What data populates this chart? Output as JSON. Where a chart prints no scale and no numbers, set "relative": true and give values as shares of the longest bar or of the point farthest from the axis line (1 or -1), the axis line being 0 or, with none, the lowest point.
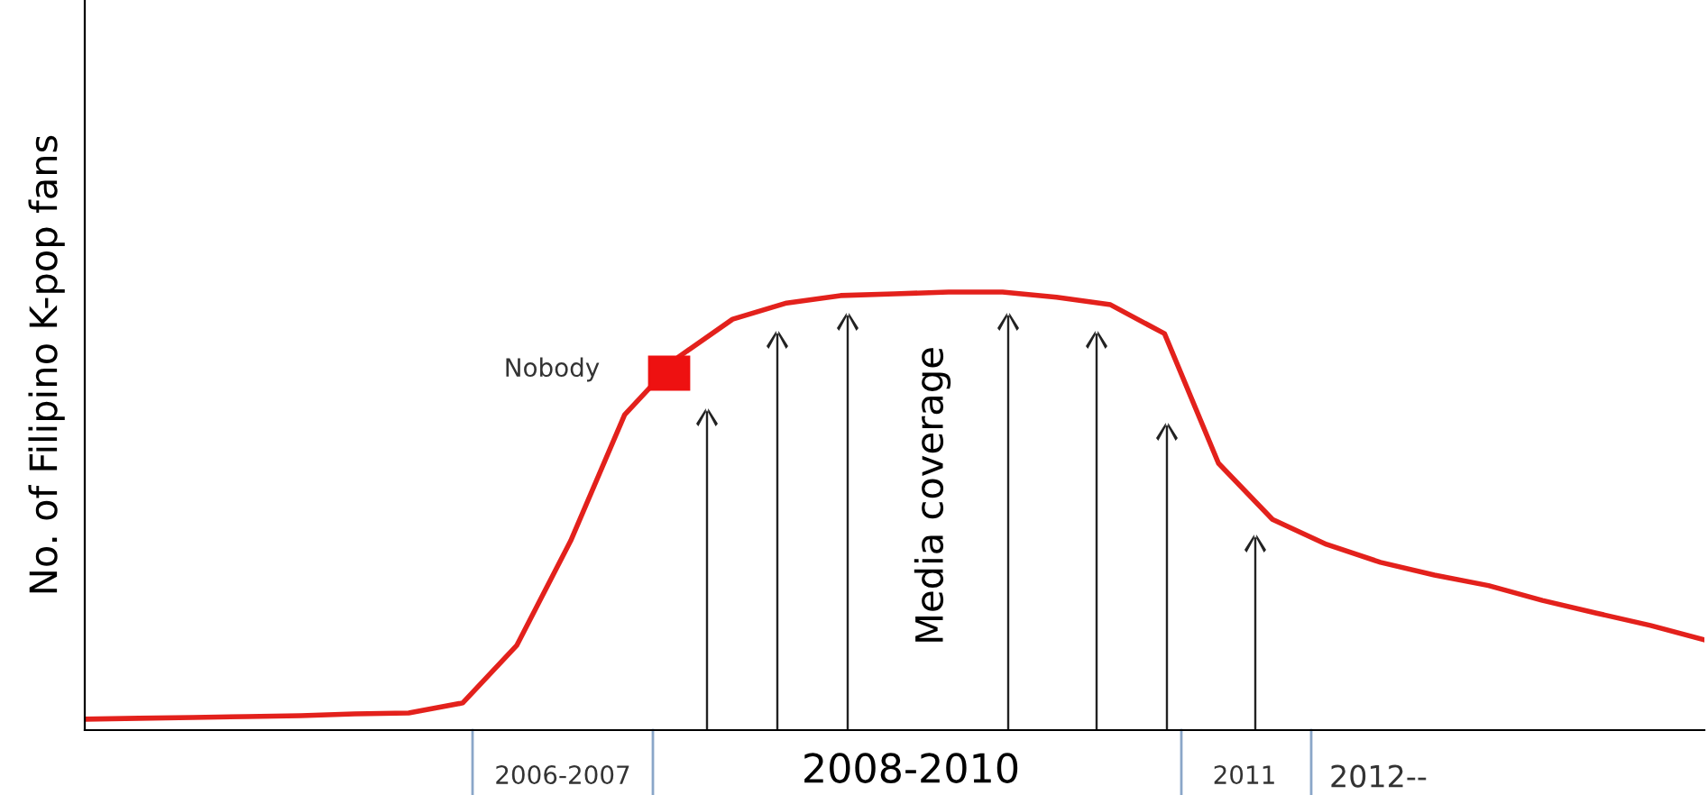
{
  "chart_data": {
    "type": "line",
    "relative": true,
    "ylabel": "No. of Filipino K-pop fans",
    "categories": [
      null,
      null,
      null,
      null,
      null,
      null,
      null,
      null,
      null,
      null,
      null,
      null,
      null,
      null,
      null,
      null,
      null,
      null,
      null,
      null,
      null,
      null,
      null,
      null,
      null,
      null,
      null,
      null,
      null,
      null,
      null
    ],
    "series": [
      {
        "color": "#e3211c",
        "values": [
          0.025,
          0.027,
          0.029,
          0.031,
          0.033,
          0.037,
          0.039,
          0.062,
          0.193,
          0.432,
          0.72,
          0.852,
          0.938,
          0.975,
          0.992,
          0.996,
          1,
          1,
          0.988,
          0.971,
          0.905,
          0.609,
          0.481,
          0.424,
          0.383,
          0.354,
          0.33,
          0.296,
          0.267,
          0.239,
          0.206
        ]
      }
    ],
    "annotations": [
      "Nobody",
      "Media coverage",
      "2006-2007",
      "2008-2010",
      "2011",
      "2012--"
    ],
    "marker": "none",
    "line_style": "solid",
    "grid": false,
    "legend": false
  }
}
